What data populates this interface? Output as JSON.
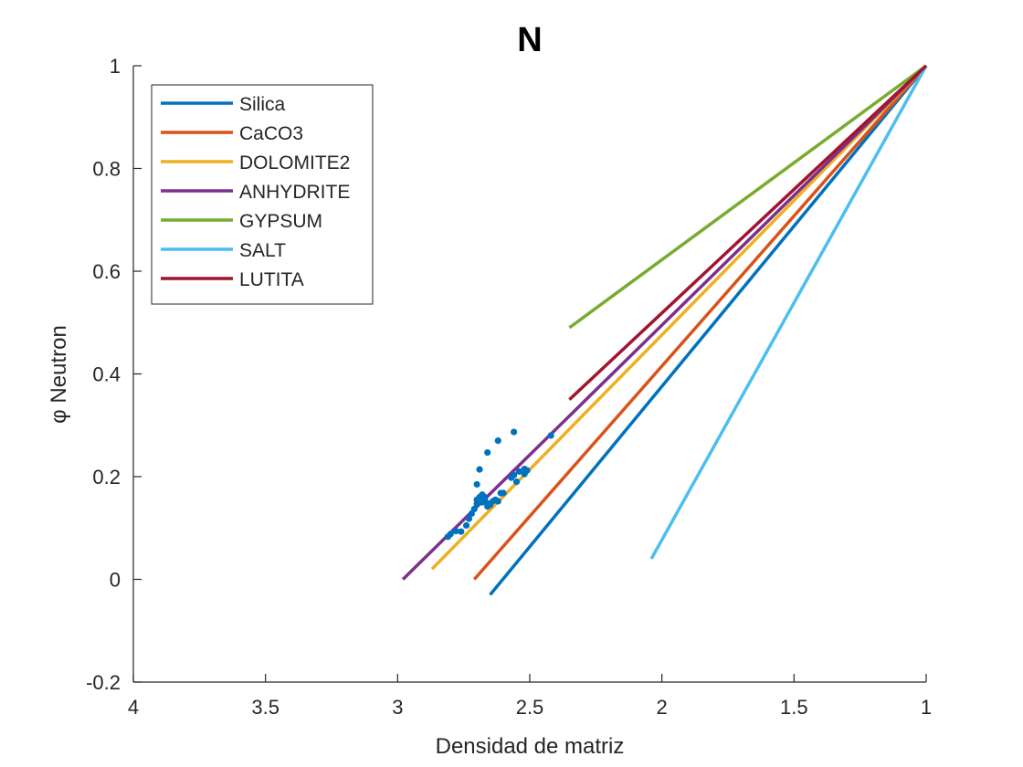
{
  "chart_data": {
    "type": "line",
    "title": "N",
    "xlabel": "Densidad de matriz",
    "ylabel": "φ Neutron",
    "xlim": [
      1,
      4
    ],
    "x_reversed": true,
    "ylim": [
      -0.2,
      1
    ],
    "x_ticks": [
      4,
      3.5,
      3,
      2.5,
      2,
      1.5,
      1
    ],
    "x_tick_labels": [
      "4",
      "3.5",
      "3",
      "2.5",
      "2",
      "1.5",
      "1"
    ],
    "y_ticks": [
      -0.2,
      0,
      0.2,
      0.4,
      0.6,
      0.8,
      1
    ],
    "y_tick_labels": [
      "-0.2",
      "0",
      "0.2",
      "0.4",
      "0.6",
      "0.8",
      "1"
    ],
    "grid": false,
    "legend_position": "top-left",
    "series": [
      {
        "name": "Silica",
        "color": "#0072BD",
        "x": [
          2.65,
          1.0
        ],
        "y": [
          -0.03,
          1.0
        ]
      },
      {
        "name": "CaCO3",
        "color": "#D95319",
        "x": [
          2.71,
          1.0
        ],
        "y": [
          0.0,
          1.0
        ]
      },
      {
        "name": "DOLOMITE2",
        "color": "#EDB120",
        "x": [
          2.87,
          1.0
        ],
        "y": [
          0.02,
          1.0
        ]
      },
      {
        "name": "ANHYDRITE",
        "color": "#7E2F8E",
        "x": [
          2.98,
          1.0
        ],
        "y": [
          0.0,
          1.0
        ]
      },
      {
        "name": "GYPSUM",
        "color": "#77AC30",
        "x": [
          2.35,
          1.0
        ],
        "y": [
          0.49,
          1.0
        ]
      },
      {
        "name": "SALT",
        "color": "#4DBEEE",
        "x": [
          2.04,
          1.0
        ],
        "y": [
          0.04,
          1.0
        ]
      },
      {
        "name": "LUTITA",
        "color": "#A2142F",
        "x": [
          2.35,
          1.0
        ],
        "y": [
          0.35,
          1.0
        ]
      }
    ],
    "scatter": {
      "color": "#0072BD",
      "points": [
        [
          2.81,
          0.083
        ],
        [
          2.8,
          0.088
        ],
        [
          2.78,
          0.094
        ],
        [
          2.76,
          0.093
        ],
        [
          2.74,
          0.105
        ],
        [
          2.73,
          0.118
        ],
        [
          2.72,
          0.128
        ],
        [
          2.71,
          0.137
        ],
        [
          2.7,
          0.147
        ],
        [
          2.7,
          0.155
        ],
        [
          2.69,
          0.152
        ],
        [
          2.69,
          0.16
        ],
        [
          2.68,
          0.165
        ],
        [
          2.68,
          0.15
        ],
        [
          2.67,
          0.157
        ],
        [
          2.67,
          0.16
        ],
        [
          2.66,
          0.142
        ],
        [
          2.66,
          0.148
        ],
        [
          2.65,
          0.145
        ],
        [
          2.64,
          0.152
        ],
        [
          2.63,
          0.155
        ],
        [
          2.62,
          0.152
        ],
        [
          2.61,
          0.168
        ],
        [
          2.6,
          0.168
        ],
        [
          2.7,
          0.185
        ],
        [
          2.69,
          0.214
        ],
        [
          2.66,
          0.247
        ],
        [
          2.62,
          0.27
        ],
        [
          2.56,
          0.287
        ],
        [
          2.57,
          0.198
        ],
        [
          2.56,
          0.203
        ],
        [
          2.55,
          0.19
        ],
        [
          2.54,
          0.21
        ],
        [
          2.52,
          0.205
        ],
        [
          2.52,
          0.215
        ],
        [
          2.51,
          0.212
        ],
        [
          2.42,
          0.28
        ]
      ]
    }
  }
}
